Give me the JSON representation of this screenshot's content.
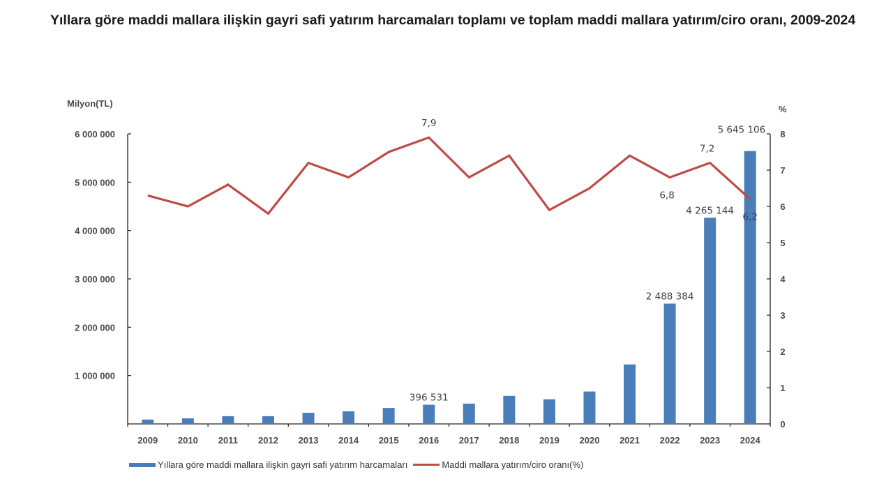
{
  "title": "Yıllara göre maddi mallara ilişkin gayri safi yatırım harcamaları toplamı ve toplam maddi mallara yatırım/ciro oranı, 2009-2024",
  "chart_data": {
    "type": "bar+line",
    "title": "Yıllara göre maddi mallara ilişkin gayri safi yatırım harcamaları toplamı ve toplam maddi mallara yatırım/ciro oranı, 2009-2024",
    "categories": [
      "2009",
      "2010",
      "2011",
      "2012",
      "2013",
      "2014",
      "2015",
      "2016",
      "2017",
      "2018",
      "2019",
      "2020",
      "2021",
      "2022",
      "2023",
      "2024"
    ],
    "y_left_label": "Milyon(TL)",
    "y_right_label": "%",
    "y_left_ticks": [
      "6 000 000",
      "5 000 000",
      "4 000 000",
      "3 000 000",
      "2 000 000",
      "1 000 000"
    ],
    "y_right_ticks": [
      "8",
      "7",
      "6",
      "5",
      "4",
      "3",
      "2",
      "1",
      "0"
    ],
    "ylim_left": [
      0,
      6000000
    ],
    "ylim_right": [
      0,
      8
    ],
    "grid": false,
    "legend_position": "bottom",
    "series": [
      {
        "name": "Yıllara göre maddi mallara ilişkin gayri safi yatırım harcamaları",
        "type": "bar",
        "axis": "left",
        "color": "#4a7ebb",
        "values": [
          90000,
          115000,
          160000,
          160000,
          230000,
          260000,
          330000,
          396531,
          420000,
          580000,
          510000,
          670000,
          1230000,
          2488384,
          4265144,
          5645106
        ],
        "data_labels": {
          "2016": "396 531",
          "2022": "2 488 384",
          "2023": "4 265 144",
          "2024": "5 645 106"
        }
      },
      {
        "name": "Maddi mallara yatırım/ciro oranı(%)",
        "type": "line",
        "axis": "right",
        "color": "#be4b48",
        "values": [
          6.3,
          6.0,
          6.6,
          5.8,
          7.2,
          6.8,
          7.5,
          7.9,
          6.8,
          7.4,
          5.9,
          6.5,
          7.4,
          6.8,
          7.2,
          6.2
        ],
        "data_labels": {
          "2016": "7,9",
          "2022": "6,8",
          "2023": "7,2",
          "2024": "6,2"
        }
      }
    ]
  },
  "legend": {
    "bar_label": "Yıllara göre maddi mallara ilişkin gayri safi yatırım harcamaları",
    "line_label": "Maddi mallara yatırım/ciro oranı(%)"
  }
}
